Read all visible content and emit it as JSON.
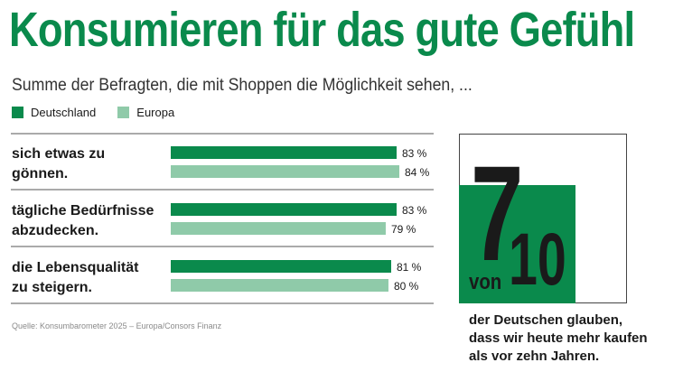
{
  "title": "Konsumieren für das gute Gefühl",
  "subtitle": "Summe der Befragten, die mit Shoppen die Möglichkeit sehen, ...",
  "colors": {
    "title": "#0a8a4c",
    "deutschland": "#0a8a4c",
    "europa": "#8fcaa9",
    "text": "#1a1a1a"
  },
  "source": "Quelle: Konsumbarometer 2025 – Europa/Consors Finanz",
  "chart_data": {
    "type": "bar",
    "orientation": "horizontal",
    "categories": [
      [
        "sich etwas zu",
        "gönnen."
      ],
      [
        "tägliche Bedürfnisse",
        "abzudecken."
      ],
      [
        "die Lebensqualität",
        "zu steigern."
      ]
    ],
    "series": [
      {
        "name": "Deutschland",
        "color": "#0a8a4c",
        "values": [
          83,
          83,
          81
        ],
        "labels": [
          "83 %",
          "83 %",
          "81 %"
        ]
      },
      {
        "name": "Europa",
        "color": "#8fcaa9",
        "values": [
          84,
          79,
          80
        ],
        "labels": [
          "84 %",
          "79 %",
          "80 %"
        ]
      }
    ],
    "xlim": [
      0,
      100
    ],
    "legend_position": "top-left"
  },
  "stat": {
    "numerator": "7",
    "von": "von",
    "denominator": "10",
    "text_lines": [
      "der Deutschen glauben,",
      "dass wir heute mehr kaufen",
      "als vor zehn Jahren."
    ]
  }
}
